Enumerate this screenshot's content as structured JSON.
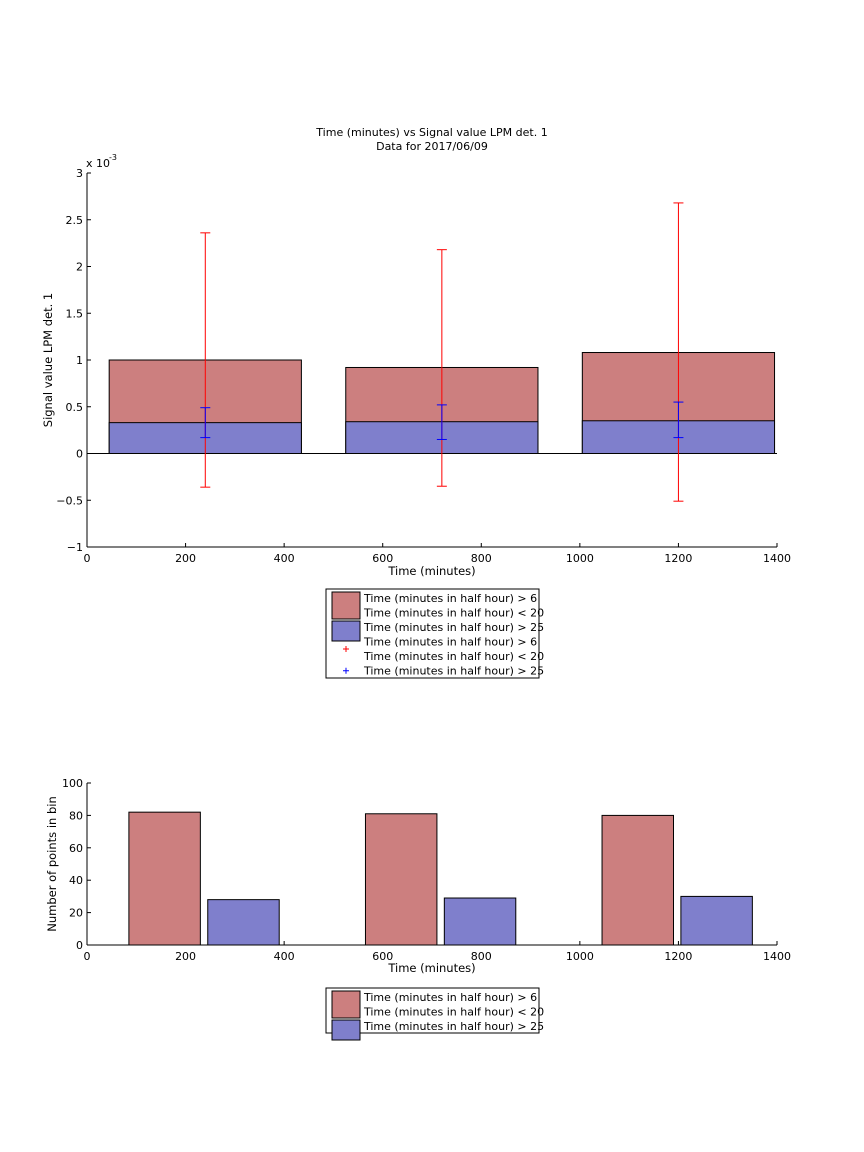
{
  "chart_data": [
    {
      "type": "bar",
      "title": "Time (minutes) vs Signal value LPM det. 1",
      "subtitle": "Data for 2017/06/09",
      "xlabel": "Time (minutes)",
      "ylabel": "Signal value LPM det. 1",
      "exponent_label": "x 10",
      "exponent_power": "-3",
      "xlim": [
        0,
        1400
      ],
      "ylim": [
        -1,
        3
      ],
      "xticks": [
        "0",
        "200",
        "400",
        "600",
        "800",
        "1000",
        "1200",
        "1400"
      ],
      "yticks": [
        "−1",
        "−0.5",
        "0",
        "0.5",
        "1",
        "1.5",
        "2",
        "2.5",
        "3"
      ],
      "bar_edges": [
        [
          45,
          435
        ],
        [
          525,
          915
        ],
        [
          1005,
          1395
        ]
      ],
      "series": [
        {
          "name": "Time (minutes in half hour) > 6\nTime (minutes in half hour) < 20",
          "color": "#cc7f7f",
          "values": [
            1.0,
            0.92,
            1.08
          ]
        },
        {
          "name": "Time (minutes in half hour) > 25",
          "color": "#7f7fcc",
          "values": [
            0.33,
            0.34,
            0.35
          ]
        }
      ],
      "errorbars": [
        {
          "name": "Time (minutes in half hour) > 6\nTime (minutes in half hour) < 20",
          "color": "#ff0000",
          "x": [
            240,
            720,
            1200
          ],
          "y": [
            1.0,
            0.92,
            1.08
          ],
          "lower": [
            -0.36,
            -0.35,
            -0.51
          ],
          "upper": [
            2.36,
            2.18,
            2.68
          ]
        },
        {
          "name": "Time (minutes in half hour) > 25",
          "color": "#0000ff",
          "x": [
            240,
            720,
            1200
          ],
          "y": [
            0.33,
            0.34,
            0.35
          ],
          "lower": [
            0.17,
            0.15,
            0.17
          ],
          "upper": [
            0.49,
            0.52,
            0.55
          ]
        }
      ],
      "legend": {
        "placement": "below",
        "entries": [
          {
            "label1": "Time (minutes in half hour) > 6",
            "label2": "Time (minutes in half hour) < 20",
            "kind": "patch",
            "color": "#cc7f7f"
          },
          {
            "label1": "Time (minutes in half hour) > 25",
            "label2": "",
            "kind": "patch",
            "color": "#7f7fcc"
          },
          {
            "label1": "Time (minutes in half hour) > 6",
            "label2": "Time (minutes in half hour) < 20",
            "kind": "marker",
            "color": "#ff0000"
          },
          {
            "label1": "Time (minutes in half hour) > 25",
            "label2": "",
            "kind": "marker",
            "color": "#0000ff"
          }
        ]
      }
    },
    {
      "type": "bar",
      "title": "",
      "xlabel": "Time (minutes)",
      "ylabel": "Number of points in bin",
      "xlim": [
        0,
        1400
      ],
      "ylim": [
        0,
        100
      ],
      "xticks": [
        "0",
        "200",
        "400",
        "600",
        "800",
        "1000",
        "1200",
        "1400"
      ],
      "yticks": [
        "0",
        "20",
        "40",
        "60",
        "80",
        "100"
      ],
      "bar_edges": [
        [
          85,
          230
        ],
        [
          245,
          390
        ],
        [
          565,
          710
        ],
        [
          725,
          870
        ],
        [
          1045,
          1190
        ],
        [
          1205,
          1350
        ]
      ],
      "series": [
        {
          "name": "Time (minutes in half hour) > 6\nTime (minutes in half hour) < 20",
          "color": "#cc7f7f",
          "x": [
            157,
            637,
            1117
          ],
          "values": [
            82,
            81,
            80
          ]
        },
        {
          "name": "Time (minutes in half hour) > 25",
          "color": "#7f7fcc",
          "x": [
            317,
            797,
            1277
          ],
          "values": [
            28,
            29,
            30
          ]
        }
      ],
      "legend": {
        "placement": "below",
        "entries": [
          {
            "label1": "Time (minutes in half hour) > 6",
            "label2": "Time (minutes in half hour) < 20",
            "kind": "patch",
            "color": "#cc7f7f"
          },
          {
            "label1": "Time (minutes in half hour) > 25",
            "label2": "",
            "kind": "patch",
            "color": "#7f7fcc"
          }
        ]
      }
    }
  ]
}
